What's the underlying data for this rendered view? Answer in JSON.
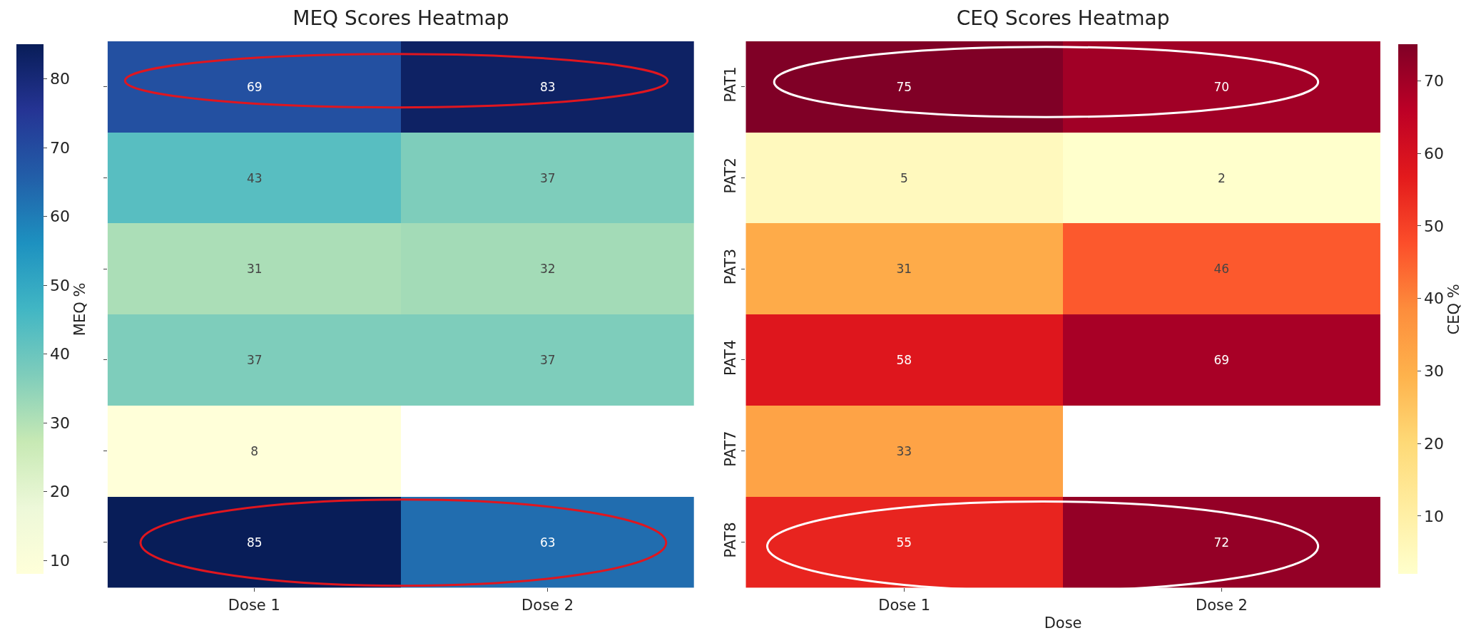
{
  "chart_data": [
    {
      "type": "heatmap",
      "title": "MEQ Scores Heatmap",
      "clabel": "MEQ %",
      "categories": [
        "Dose 1",
        "Dose 2"
      ],
      "y_categories": [
        null,
        null,
        null,
        null,
        null,
        null
      ],
      "cells": [
        [
          69,
          83
        ],
        [
          43,
          37
        ],
        [
          31,
          32
        ],
        [
          37,
          37
        ],
        [
          8,
          null
        ],
        [
          85,
          63
        ]
      ],
      "clim": [
        8,
        85
      ],
      "cticks": [
        10,
        20,
        30,
        40,
        50,
        60,
        70,
        80
      ],
      "data_labels": true
    },
    {
      "type": "heatmap",
      "title": "CEQ Scores Heatmap",
      "xlabel": "Dose",
      "clabel": "CEQ %",
      "categories": [
        "Dose 1",
        "Dose 2"
      ],
      "y_categories": [
        "PAT1",
        "PAT2",
        "PAT3",
        "PAT4",
        "PAT7",
        "PAT8"
      ],
      "cells": [
        [
          75,
          70
        ],
        [
          5,
          2
        ],
        [
          31,
          46
        ],
        [
          58,
          69
        ],
        [
          33,
          null
        ],
        [
          55,
          72
        ]
      ],
      "clim": [
        2,
        75
      ],
      "cticks": [
        10,
        20,
        30,
        40,
        50,
        60,
        70
      ],
      "data_labels": true
    }
  ]
}
